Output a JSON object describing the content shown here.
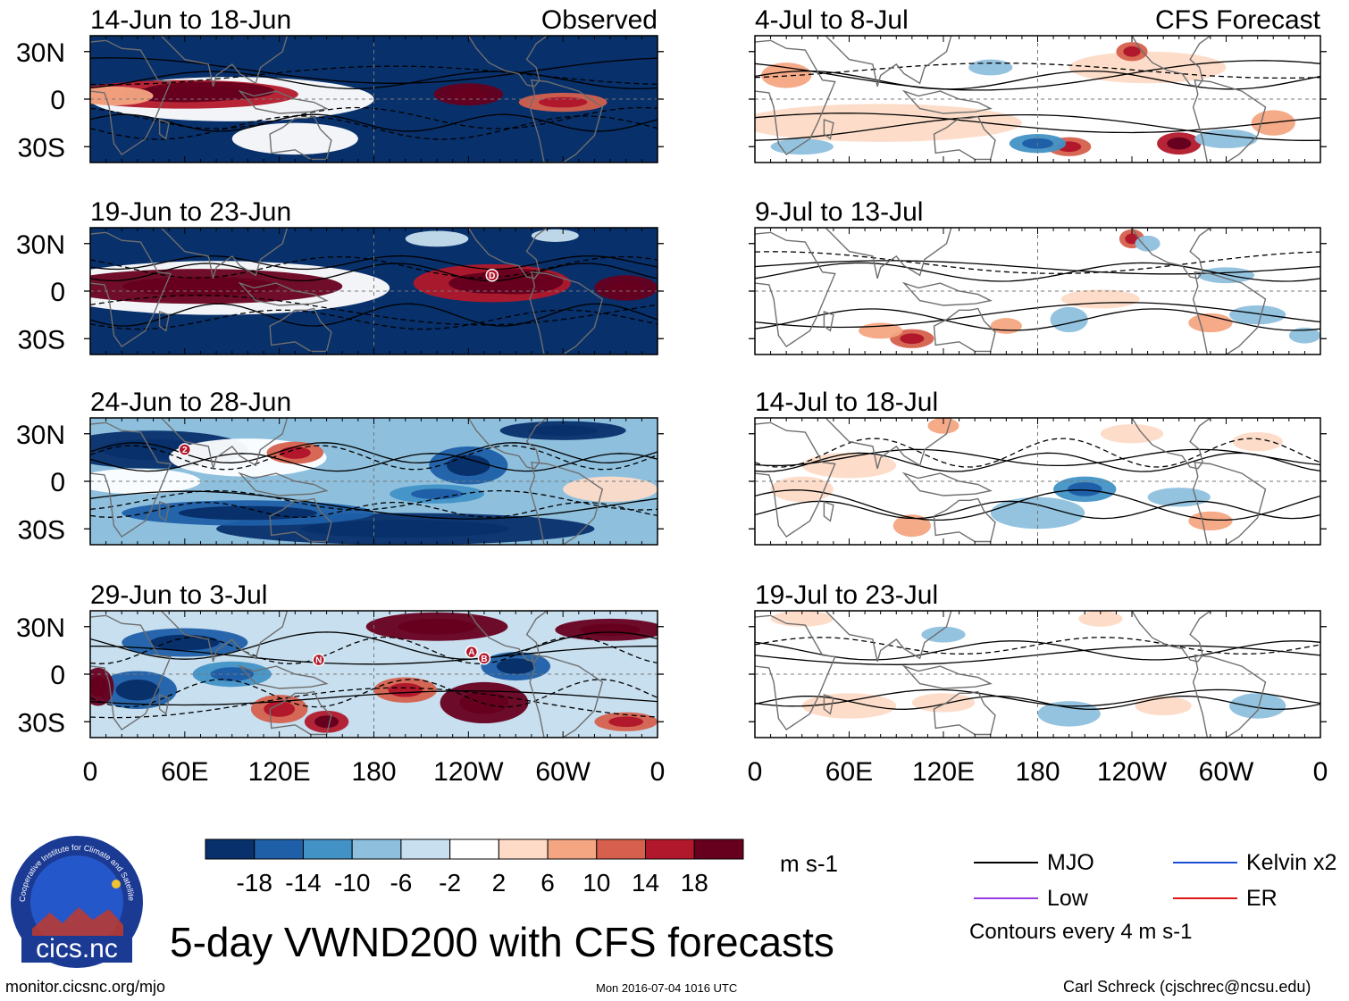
{
  "chart_data": {
    "type": "heatmap",
    "title": "5-day VWND200 with CFS forecasts",
    "variable": "VWND200",
    "units": "m s-1",
    "contour_note": "Contours every 4 m s-1",
    "x_ticks": [
      "0",
      "60E",
      "120E",
      "180",
      "120W",
      "60W",
      "0"
    ],
    "y_ticks": [
      "30N",
      "0",
      "30S"
    ],
    "xlim": [
      0,
      360
    ],
    "ylim": [
      -40,
      40
    ],
    "column_headers": [
      "Observed",
      "CFS Forecast"
    ],
    "observed_periods": [
      "14-Jun to 18-Jun",
      "19-Jun to 23-Jun",
      "24-Jun to 28-Jun",
      "29-Jun to 3-Jul"
    ],
    "forecast_periods": [
      "4-Jul to 8-Jul",
      "9-Jul to 13-Jul",
      "14-Jul to 18-Jul",
      "19-Jul to 23-Jul"
    ],
    "colorbar": {
      "levels": [
        "-18",
        "-14",
        "-10",
        "-6",
        "-2",
        "2",
        "6",
        "10",
        "14",
        "18"
      ],
      "colors": [
        "#08306b",
        "#1f5fa8",
        "#4292c6",
        "#8ec0de",
        "#c7dfef",
        "#ffffff",
        "#fddbc7",
        "#f4a582",
        "#d6604d",
        "#b2182b",
        "#67001f"
      ]
    },
    "markers": [
      {
        "panel": 1,
        "label": "D"
      },
      {
        "panel": 2,
        "label": "2"
      },
      {
        "panel": 3,
        "label": "N"
      },
      {
        "panel": 3,
        "label": "A"
      },
      {
        "panel": 3,
        "label": "B"
      }
    ],
    "legend": [
      {
        "name": "MJO",
        "color": "#000000"
      },
      {
        "name": "Kelvin x2",
        "color": "#1a4fd6"
      },
      {
        "name": "Low",
        "color": "#9a3ce6"
      },
      {
        "name": "ER",
        "color": "#e01414"
      }
    ]
  },
  "footer": {
    "left": "monitor.cicsnc.org/mjo",
    "center": "Mon 2016-07-04 1016 UTC",
    "right": "Carl Schreck (cjschrec@ncsu.edu)"
  },
  "logo": {
    "text": "cics.nc",
    "ring_text": "Cooperative Institute for Climate and Satellites"
  }
}
